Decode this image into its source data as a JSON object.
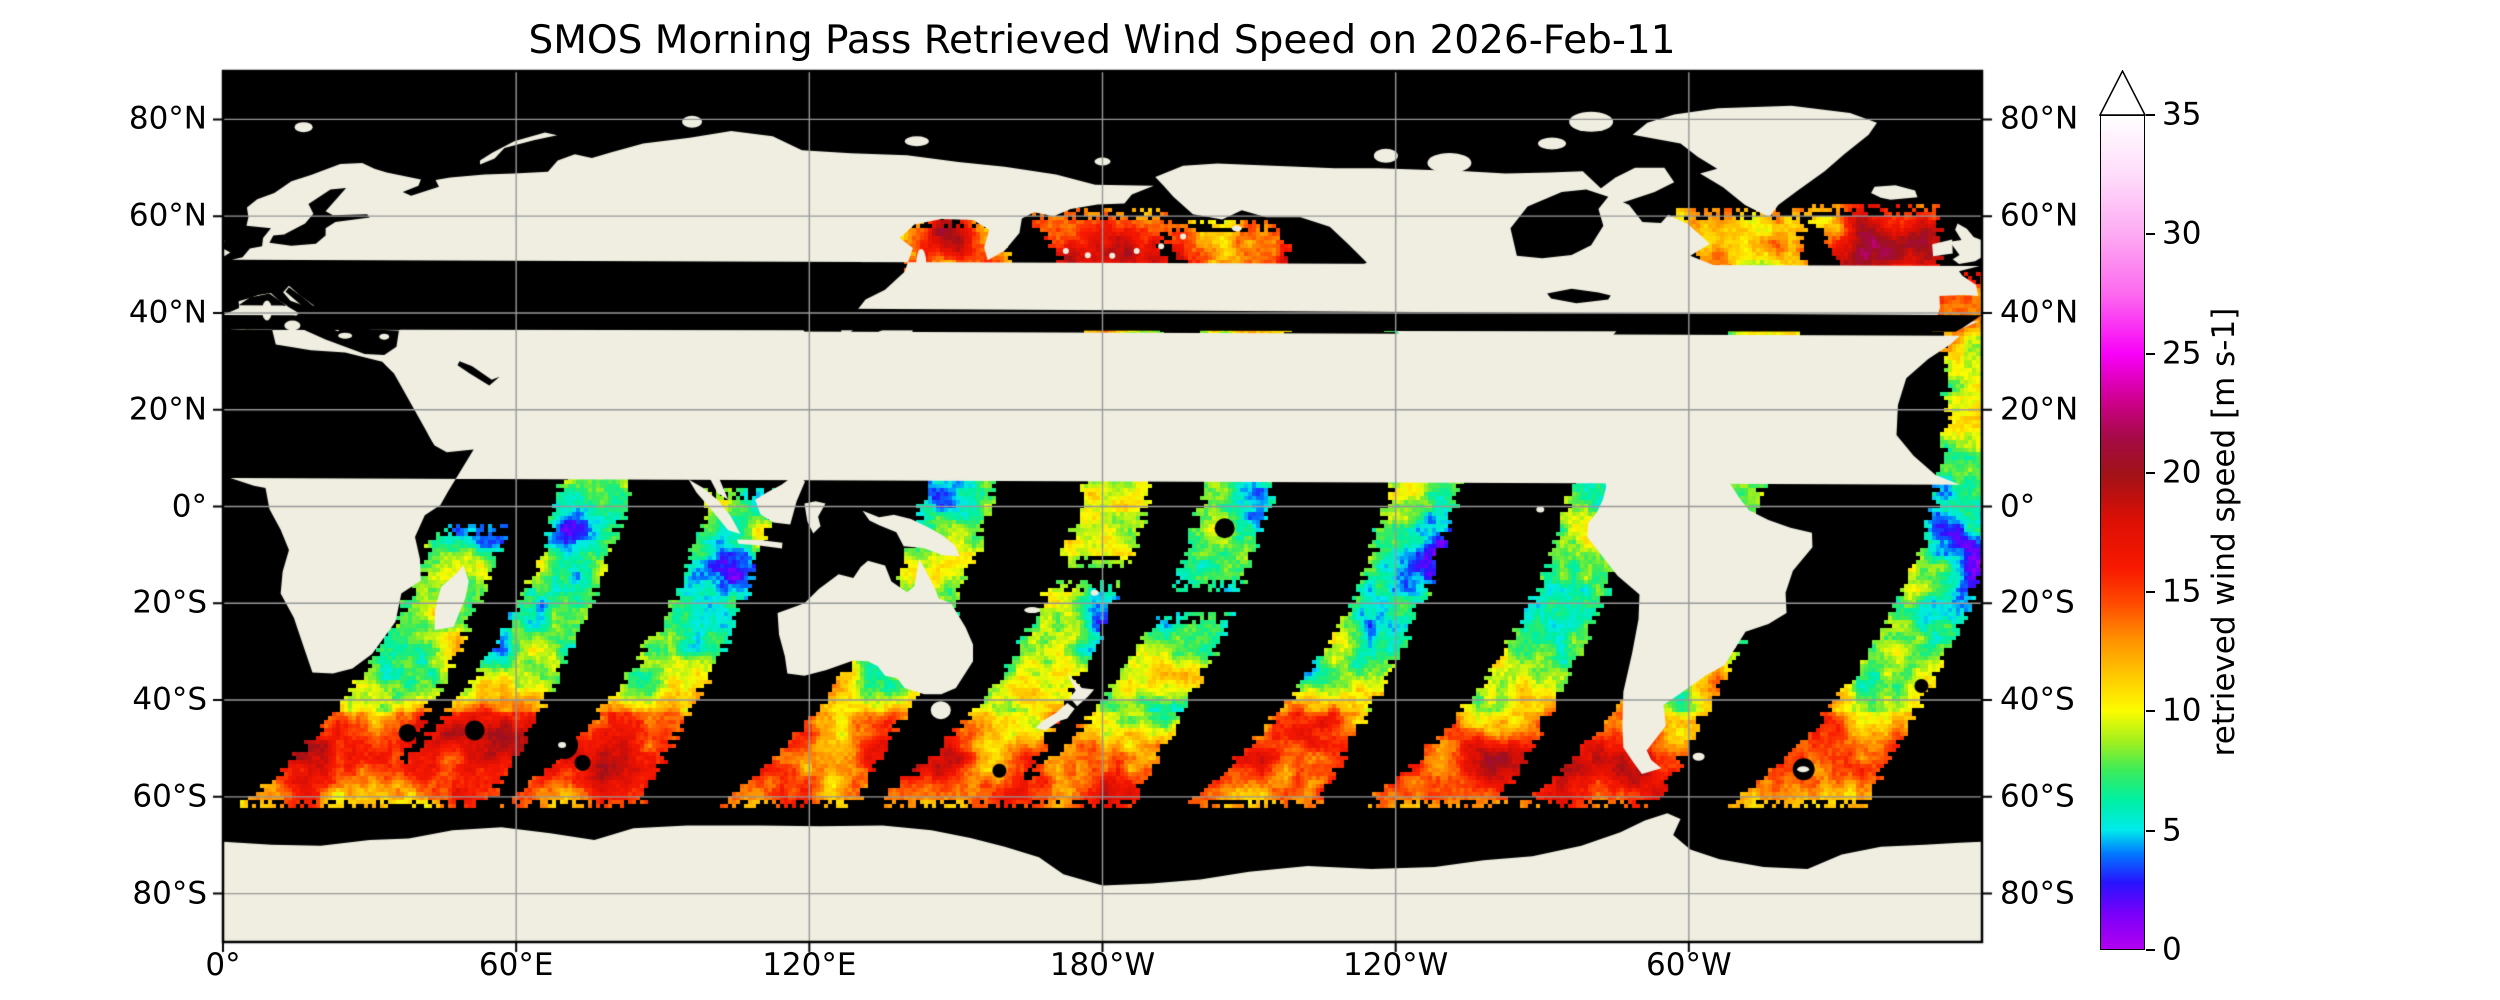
{
  "chart_data": {
    "type": "heatmap",
    "title": "SMOS Morning Pass Retrieved Wind Speed on 2026-Feb-11",
    "date": "2026-Feb-11",
    "projection": "equirectangular world map, longitude 0°E to 360°E (Pacific centered on 180°), latitude 90°N to 90°S",
    "grid": "on",
    "x_axis": {
      "ticks": [
        {
          "lon": 0,
          "label": "0°"
        },
        {
          "lon": 60,
          "label": "60°E"
        },
        {
          "lon": 120,
          "label": "120°E"
        },
        {
          "lon": 180,
          "label": "180°W"
        },
        {
          "lon": 240,
          "label": "120°W"
        },
        {
          "lon": 300,
          "label": "60°W"
        }
      ]
    },
    "y_axis": {
      "label_sides": "both",
      "ticks": [
        {
          "lat": 80,
          "label": "80°N"
        },
        {
          "lat": 60,
          "label": "60°N"
        },
        {
          "lat": 40,
          "label": "40°N"
        },
        {
          "lat": 20,
          "label": "20°N"
        },
        {
          "lat": 0,
          "label": "0°"
        },
        {
          "lat": -20,
          "label": "20°S"
        },
        {
          "lat": -40,
          "label": "40°S"
        },
        {
          "lat": -60,
          "label": "60°S"
        },
        {
          "lat": -80,
          "label": "80°S"
        }
      ]
    },
    "colorbar": {
      "label": "retrieved wind speed [m s-1]",
      "range": [
        0,
        35
      ],
      "ticks": [
        "0",
        "5",
        "10",
        "15",
        "20",
        "25",
        "30",
        "35"
      ],
      "extend_max_arrow": true,
      "stops": [
        [
          0.0,
          "#B200F0"
        ],
        [
          1.5,
          "#7800FA"
        ],
        [
          2.8,
          "#2814FF"
        ],
        [
          4.0,
          "#0078FF"
        ],
        [
          5.0,
          "#00EBEB"
        ],
        [
          6.3,
          "#00F0A0"
        ],
        [
          7.5,
          "#3CEB5A"
        ],
        [
          8.7,
          "#A0F01E"
        ],
        [
          10.0,
          "#FCFC00"
        ],
        [
          11.5,
          "#FFC800"
        ],
        [
          13.0,
          "#FF9100"
        ],
        [
          14.5,
          "#FF4B00"
        ],
        [
          16.0,
          "#F81900"
        ],
        [
          18.0,
          "#DC0F05"
        ],
        [
          20.0,
          "#A01219"
        ],
        [
          21.5,
          "#A50A46"
        ],
        [
          23.0,
          "#CD008C"
        ],
        [
          25.0,
          "#F800F8"
        ],
        [
          27.5,
          "#FC69EE"
        ],
        [
          30.0,
          "#FDAAF3"
        ],
        [
          32.5,
          "#FEDCFA"
        ],
        [
          35.0,
          "#FFFFFF"
        ]
      ]
    },
    "map_colors": {
      "ocean": "#000000",
      "land": "#EFEEE1",
      "grid": "#999999",
      "frame": "#000000",
      "background": "#FFFFFF"
    },
    "swaths": {
      "description": "Descending (morning) satellite passes shown as curved north-east to south-west bands over ocean only; wind speed in m/s rendered through the colorbar palette.",
      "width_deg": 13,
      "track_curve": {
        "linear": 0.25,
        "quad": -0.005
      },
      "passes": [
        {
          "eq_lon": 52,
          "segments": [
            [
              -62,
              -4
            ]
          ]
        },
        {
          "eq_lon": 75,
          "segments": [
            [
              -62,
              14
            ]
          ]
        },
        {
          "eq_lon": 106,
          "segments": [
            [
              -62,
              3
            ]
          ]
        },
        {
          "eq_lon": 150,
          "segments": [
            [
              -62,
              34
            ],
            [
              46,
              60
            ]
          ]
        },
        {
          "eq_lon": 182,
          "segments": [
            [
              -62,
              -16
            ],
            [
              -12,
              61
            ]
          ]
        },
        {
          "eq_lon": 207,
          "segments": [
            [
              -62,
              -22
            ],
            [
              -17,
              59
            ]
          ]
        },
        {
          "eq_lon": 245,
          "segments": [
            [
              -62,
              56
            ]
          ]
        },
        {
          "eq_lon": 282,
          "segments": [
            [
              -62,
              18
            ]
          ]
        },
        {
          "eq_lon": 307,
          "segments": [
            [
              -20,
              10
            ]
          ]
        },
        {
          "eq_lon": 314,
          "segments": [
            [
              -62,
              -24
            ]
          ]
        },
        {
          "eq_lon": 313,
          "segments": [
            [
              20,
              61
            ]
          ]
        },
        {
          "eq_lon": 341,
          "segments": [
            [
              39,
              62
            ]
          ]
        },
        {
          "eq_lon": 357,
          "segments": [
            [
              -62,
              48
            ]
          ]
        }
      ]
    },
    "wind_features": {
      "base_profile": {
        "tropics_ms": 7.2,
        "midlatitude_add_ms": 4.2,
        "southern_ocean_add_ms": 1.4,
        "northern_storm_belt_add_ms": 0.8
      },
      "storms": [
        {
          "lon": 183,
          "lat": 50,
          "amp": 9,
          "slon": 10,
          "slat": 5
        },
        {
          "lon": 214,
          "lat": 45,
          "amp": 7,
          "slon": 9,
          "slat": 5
        },
        {
          "lon": 148,
          "lat": 56,
          "amp": 7,
          "slon": 6,
          "slat": 4
        },
        {
          "lon": 343,
          "lat": 52,
          "amp": 9,
          "slon": 12,
          "slat": 6
        },
        {
          "lon": 316,
          "lat": 45,
          "amp": 7,
          "slon": 7,
          "slat": 5
        },
        {
          "lon": 70,
          "lat": 14,
          "amp": 3,
          "slon": 8,
          "slat": 5
        },
        {
          "lon": 152,
          "lat": 28,
          "amp": 3,
          "slon": 6,
          "slat": 4
        },
        {
          "lon": 55,
          "lat": -50,
          "amp": 5,
          "slon": 14,
          "slat": 6
        },
        {
          "lon": 90,
          "lat": -54,
          "amp": 4,
          "slon": 12,
          "slat": 5
        },
        {
          "lon": 140,
          "lat": -52,
          "amp": 3,
          "slon": 10,
          "slat": 5
        },
        {
          "lon": 182,
          "lat": -55,
          "amp": 3,
          "slon": 10,
          "slat": 5
        },
        {
          "lon": 225,
          "lat": -52,
          "amp": 3,
          "slon": 10,
          "slat": 5
        },
        {
          "lon": 262,
          "lat": -52,
          "amp": 5,
          "slon": 12,
          "slat": 5
        },
        {
          "lon": 302,
          "lat": -55,
          "amp": 5,
          "slon": 12,
          "slat": 5
        },
        {
          "lon": 338,
          "lat": -52,
          "amp": 4,
          "slon": 10,
          "slat": 5
        },
        {
          "lon": 20,
          "lat": -50,
          "amp": 4,
          "slon": 10,
          "slat": 5
        }
      ],
      "calms": [
        {
          "lon": 152,
          "lat": -28,
          "amp": -6,
          "slon": 6,
          "slat": 4
        },
        {
          "lon": 195,
          "lat": -42,
          "amp": -5,
          "slon": 6,
          "slat": 3
        },
        {
          "lon": 248,
          "lat": -6,
          "amp": -5,
          "slon": 7,
          "slat": 4
        },
        {
          "lon": 318,
          "lat": 49.5,
          "amp": -7,
          "slon": 6,
          "slat": 2
        },
        {
          "lon": 341,
          "lat": 47,
          "amp": -5,
          "slon": 5,
          "slat": 2
        },
        {
          "lon": 357,
          "lat": -10,
          "amp": -4,
          "slon": 5,
          "slat": 5
        },
        {
          "lon": 222,
          "lat": -34,
          "amp": -5,
          "slon": 6,
          "slat": 3
        },
        {
          "lon": 106,
          "lat": -13,
          "amp": -4,
          "slon": 5,
          "slat": 3
        },
        {
          "lon": 72,
          "lat": -4,
          "amp": -4,
          "slon": 5,
          "slat": 3
        },
        {
          "lon": 184,
          "lat": 27,
          "amp": -5,
          "slon": 5,
          "slat": 2
        },
        {
          "lon": 246,
          "lat": 38,
          "amp": -5,
          "slon": 5,
          "slat": 3
        },
        {
          "lon": 212,
          "lat": -18,
          "amp": -3,
          "slon": 5,
          "slat": 3
        }
      ]
    }
  }
}
